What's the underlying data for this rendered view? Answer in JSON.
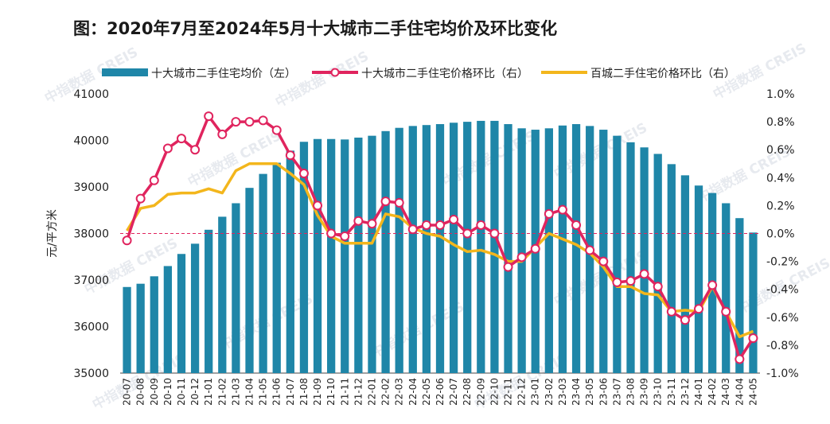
{
  "figure": {
    "title": "图：2020年7月至2024年5月十大城市二手住宅均价及环比变化"
  },
  "colors": {
    "bar": "#1f86a8",
    "line_top10": "#e0245e",
    "line_top100": "#f3b61c",
    "zero_line": "#e0245e"
  },
  "chart_data": {
    "type": "bar",
    "categories": [
      "20-07",
      "20-08",
      "20-09",
      "20-10",
      "20-11",
      "20-12",
      "21-01",
      "21-02",
      "21-03",
      "21-04",
      "21-05",
      "21-06",
      "21-07",
      "21-08",
      "21-09",
      "21-10",
      "21-11",
      "21-12",
      "22-01",
      "22-02",
      "22-03",
      "22-04",
      "22-05",
      "22-06",
      "22-07",
      "22-08",
      "22-09",
      "22-10",
      "22-11",
      "22-12",
      "23-01",
      "23-02",
      "23-03",
      "23-04",
      "23-05",
      "23-06",
      "23-07",
      "23-08",
      "23-09",
      "23-10",
      "23-11",
      "23-12",
      "24-01",
      "24-02",
      "24-03",
      "24-04",
      "24-05"
    ],
    "series": [
      {
        "name": "十大城市二手住宅均价（左）",
        "type": "bar",
        "axis": "left",
        "values": [
          36850,
          36920,
          37080,
          37300,
          37560,
          37780,
          38080,
          38360,
          38650,
          38980,
          39280,
          39520,
          39780,
          39970,
          40030,
          40030,
          40020,
          40060,
          40100,
          40200,
          40270,
          40310,
          40330,
          40350,
          40380,
          40400,
          40420,
          40420,
          40350,
          40260,
          40230,
          40260,
          40320,
          40350,
          40310,
          40230,
          40100,
          39960,
          39850,
          39710,
          39490,
          39250,
          39030,
          38870,
          38650,
          38330,
          38020
        ]
      },
      {
        "name": "十大城市二手住宅价格环比（右）",
        "type": "line",
        "axis": "right",
        "values": [
          -0.05,
          0.25,
          0.38,
          0.61,
          0.68,
          0.6,
          0.84,
          0.71,
          0.8,
          0.8,
          0.81,
          0.74,
          0.56,
          0.43,
          0.2,
          0.0,
          -0.02,
          0.09,
          0.07,
          0.23,
          0.22,
          0.03,
          0.06,
          0.06,
          0.1,
          0.0,
          0.06,
          0.0,
          -0.24,
          -0.17,
          -0.11,
          0.14,
          0.17,
          0.06,
          -0.12,
          -0.2,
          -0.35,
          -0.34,
          -0.29,
          -0.38,
          -0.56,
          -0.62,
          -0.54,
          -0.37,
          -0.56,
          -0.9,
          -0.75
        ]
      },
      {
        "name": "百城二手住宅价格环比（右）",
        "type": "line",
        "axis": "right",
        "values": [
          0.02,
          0.18,
          0.2,
          0.28,
          0.29,
          0.29,
          0.32,
          0.29,
          0.45,
          0.5,
          0.5,
          0.5,
          0.43,
          0.35,
          0.13,
          -0.02,
          -0.07,
          -0.07,
          -0.07,
          0.14,
          0.12,
          0.04,
          0.0,
          -0.02,
          -0.08,
          -0.13,
          -0.12,
          -0.15,
          -0.2,
          -0.2,
          -0.1,
          0.0,
          -0.04,
          -0.08,
          -0.14,
          -0.24,
          -0.38,
          -0.38,
          -0.43,
          -0.44,
          -0.56,
          -0.55,
          -0.56,
          -0.38,
          -0.56,
          -0.74,
          -0.7
        ]
      }
    ],
    "ylabel_left": "元/平方米",
    "ylim_left": [
      35000,
      41000
    ],
    "yticks_left": [
      "35000",
      "36000",
      "37000",
      "38000",
      "39000",
      "40000",
      "41000"
    ],
    "ylim_right": [
      -1.0,
      1.0
    ],
    "yticks_right": [
      "-1.0%",
      "-0.8%",
      "-0.6%",
      "-0.4%",
      "-0.2%",
      "0.0%",
      "0.2%",
      "0.4%",
      "0.6%",
      "0.8%",
      "1.0%"
    ],
    "grid": false,
    "legend_position": "top",
    "watermark": "中指数据 CREIS"
  }
}
